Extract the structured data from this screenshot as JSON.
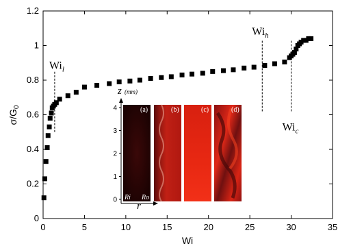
{
  "chart_data": {
    "type": "scatter",
    "xlabel": "Wi",
    "ylabel": "σ/G",
    "ylabel_sub": "0",
    "xlim": [
      0,
      35
    ],
    "ylim": [
      0,
      1.2
    ],
    "xticks": [
      "0",
      "5",
      "10",
      "15",
      "20",
      "25",
      "30",
      "35"
    ],
    "yticks": [
      "0",
      "0.2",
      "0.4",
      "0.6",
      "0.8",
      "1",
      "1.2"
    ],
    "marker": "square",
    "marker_color": "#000000",
    "series": [
      {
        "x": [
          0.1,
          0.2,
          0.35,
          0.5,
          0.6,
          0.75,
          0.85,
          1.0,
          1.1,
          1.25,
          1.4,
          1.6,
          2.0,
          3.0,
          4.0,
          5.0,
          6.5,
          8.0,
          9.2,
          10.5,
          11.7,
          13.0,
          14.3,
          15.5,
          16.8,
          18.0,
          19.3,
          20.5,
          21.8,
          23.0,
          24.3,
          25.5,
          26.8,
          28.0,
          29.2,
          29.8,
          30.0,
          30.2,
          30.4,
          30.6,
          30.8,
          31.0,
          31.2,
          31.5,
          31.8,
          32.1,
          32.4
        ],
        "y": [
          0.12,
          0.23,
          0.33,
          0.41,
          0.48,
          0.53,
          0.58,
          0.61,
          0.64,
          0.65,
          0.66,
          0.67,
          0.69,
          0.71,
          0.73,
          0.76,
          0.77,
          0.78,
          0.79,
          0.795,
          0.8,
          0.81,
          0.815,
          0.82,
          0.83,
          0.835,
          0.84,
          0.85,
          0.855,
          0.86,
          0.87,
          0.875,
          0.885,
          0.895,
          0.905,
          0.93,
          0.94,
          0.95,
          0.96,
          0.98,
          1.0,
          1.01,
          1.02,
          1.03,
          1.03,
          1.04,
          1.04
        ]
      }
    ],
    "annotations": [
      {
        "label": "Wi",
        "sub": "l",
        "x": 1.4,
        "y_from": 0.5,
        "y_to": 0.85
      },
      {
        "label": "Wi",
        "sub": "h",
        "x": 26.5,
        "y_from": 0.62,
        "y_to": 1.03
      },
      {
        "label": "Wi",
        "sub": "c",
        "x": 30.0,
        "y_from": 0.62,
        "y_to": 1.03
      }
    ],
    "inset": {
      "ylabel": "z",
      "ylabel_unit": "(mm)",
      "xlabel": "r",
      "yticks": [
        "0",
        "1",
        "2",
        "3",
        "4"
      ],
      "ylim": [
        0,
        4
      ],
      "panels": [
        "(a)",
        "(b)",
        "(c)",
        "(d)"
      ],
      "bottom_labels": [
        "Ri",
        "Ro"
      ]
    }
  }
}
